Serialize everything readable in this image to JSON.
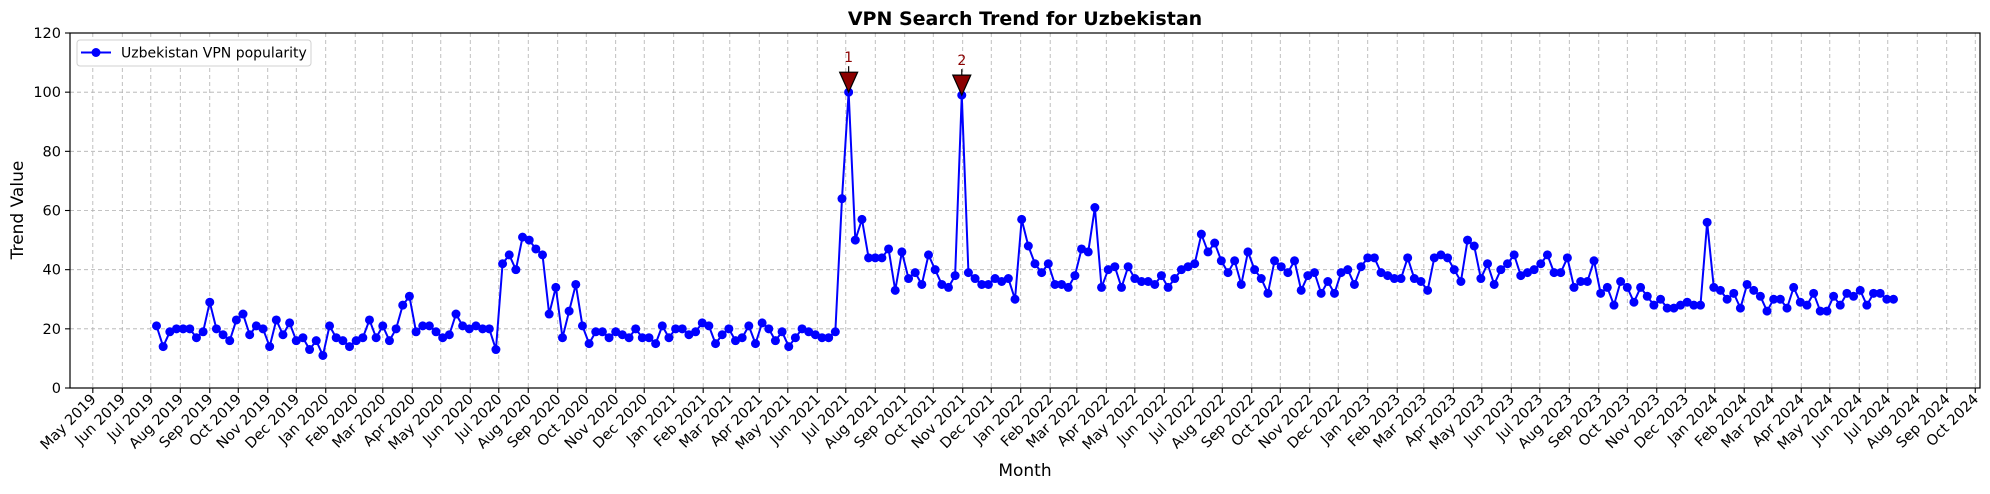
{
  "chart_data": {
    "type": "line",
    "title": "VPN Search Trend for Uzbekistan",
    "xlabel": "Month",
    "ylabel": "Trend Value",
    "ylim": [
      0,
      120
    ],
    "y_ticks": [
      0,
      20,
      40,
      60,
      80,
      100,
      120
    ],
    "xlim": [
      "2019-04-07",
      "2024-10-06"
    ],
    "x_tick_labels": [
      "May 2019",
      "Jun 2019",
      "Jul 2019",
      "Aug 2019",
      "Sep 2019",
      "Oct 2019",
      "Nov 2019",
      "Dec 2019",
      "Jan 2020",
      "Feb 2020",
      "Mar 2020",
      "Apr 2020",
      "May 2020",
      "Jun 2020",
      "Jul 2020",
      "Aug 2020",
      "Sep 2020",
      "Oct 2020",
      "Nov 2020",
      "Dec 2020",
      "Jan 2021",
      "Feb 2021",
      "Mar 2021",
      "Apr 2021",
      "May 2021",
      "Jun 2021",
      "Jul 2021",
      "Aug 2021",
      "Sep 2021",
      "Oct 2021",
      "Nov 2021",
      "Dec 2021",
      "Jan 2022",
      "Feb 2022",
      "Mar 2022",
      "Apr 2022",
      "May 2022",
      "Jun 2022",
      "Jul 2022",
      "Aug 2022",
      "Sep 2022",
      "Oct 2022",
      "Nov 2022",
      "Dec 2022",
      "Jan 2023",
      "Feb 2023",
      "Mar 2023",
      "Apr 2023",
      "May 2023",
      "Jun 2023",
      "Jul 2023",
      "Aug 2023",
      "Sep 2023",
      "Oct 2023",
      "Nov 2023",
      "Dec 2023",
      "Jan 2024",
      "Feb 2024",
      "Mar 2024",
      "Apr 2024",
      "May 2024",
      "Jun 2024",
      "Jul 2024",
      "Aug 2024",
      "Sep 2024",
      "Oct 2024"
    ],
    "grid": true,
    "legend_position": "top-left",
    "series": [
      {
        "name": "Uzbekistan VPN popularity",
        "color": "#0000ff",
        "marker": "circle",
        "x": [
          "2019-07-07",
          "2019-07-14",
          "2019-07-21",
          "2019-07-28",
          "2019-08-04",
          "2019-08-11",
          "2019-08-18",
          "2019-08-25",
          "2019-09-01",
          "2019-09-08",
          "2019-09-15",
          "2019-09-22",
          "2019-09-29",
          "2019-10-06",
          "2019-10-13",
          "2019-10-20",
          "2019-10-27",
          "2019-11-03",
          "2019-11-10",
          "2019-11-17",
          "2019-11-24",
          "2019-12-01",
          "2019-12-08",
          "2019-12-15",
          "2019-12-22",
          "2019-12-29",
          "2020-01-05",
          "2020-01-12",
          "2020-01-19",
          "2020-01-26",
          "2020-02-02",
          "2020-02-09",
          "2020-02-16",
          "2020-02-23",
          "2020-03-01",
          "2020-03-08",
          "2020-03-15",
          "2020-03-22",
          "2020-03-29",
          "2020-04-05",
          "2020-04-12",
          "2020-04-19",
          "2020-04-26",
          "2020-05-03",
          "2020-05-10",
          "2020-05-17",
          "2020-05-24",
          "2020-05-31",
          "2020-06-07",
          "2020-06-14",
          "2020-06-21",
          "2020-06-28",
          "2020-07-05",
          "2020-07-12",
          "2020-07-19",
          "2020-07-26",
          "2020-08-02",
          "2020-08-09",
          "2020-08-16",
          "2020-08-23",
          "2020-08-30",
          "2020-09-06",
          "2020-09-13",
          "2020-09-20",
          "2020-09-27",
          "2020-10-04",
          "2020-10-11",
          "2020-10-18",
          "2020-10-25",
          "2020-11-01",
          "2020-11-08",
          "2020-11-15",
          "2020-11-22",
          "2020-11-29",
          "2020-12-06",
          "2020-12-13",
          "2020-12-20",
          "2020-12-27",
          "2021-01-03",
          "2021-01-10",
          "2021-01-17",
          "2021-01-24",
          "2021-01-31",
          "2021-02-07",
          "2021-02-14",
          "2021-02-21",
          "2021-02-28",
          "2021-03-07",
          "2021-03-14",
          "2021-03-21",
          "2021-03-28",
          "2021-04-04",
          "2021-04-11",
          "2021-04-18",
          "2021-04-25",
          "2021-05-02",
          "2021-05-09",
          "2021-05-16",
          "2021-05-23",
          "2021-05-30",
          "2021-06-06",
          "2021-06-13",
          "2021-06-20",
          "2021-06-27",
          "2021-07-04",
          "2021-07-11",
          "2021-07-18",
          "2021-07-25",
          "2021-08-01",
          "2021-08-08",
          "2021-08-15",
          "2021-08-22",
          "2021-08-29",
          "2021-09-05",
          "2021-09-12",
          "2021-09-19",
          "2021-09-26",
          "2021-10-03",
          "2021-10-10",
          "2021-10-17",
          "2021-10-24",
          "2021-10-31",
          "2021-11-07",
          "2021-11-14",
          "2021-11-21",
          "2021-11-28",
          "2021-12-05",
          "2021-12-12",
          "2021-12-19",
          "2021-12-26",
          "2022-01-02",
          "2022-01-09",
          "2022-01-16",
          "2022-01-23",
          "2022-01-30",
          "2022-02-06",
          "2022-02-13",
          "2022-02-20",
          "2022-02-27",
          "2022-03-06",
          "2022-03-13",
          "2022-03-20",
          "2022-03-27",
          "2022-04-03",
          "2022-04-10",
          "2022-04-17",
          "2022-04-24",
          "2022-05-01",
          "2022-05-08",
          "2022-05-15",
          "2022-05-22",
          "2022-05-29",
          "2022-06-05",
          "2022-06-12",
          "2022-06-19",
          "2022-06-26",
          "2022-07-03",
          "2022-07-10",
          "2022-07-17",
          "2022-07-24",
          "2022-07-31",
          "2022-08-07",
          "2022-08-14",
          "2022-08-21",
          "2022-08-28",
          "2022-09-04",
          "2022-09-11",
          "2022-09-18",
          "2022-09-25",
          "2022-10-02",
          "2022-10-09",
          "2022-10-16",
          "2022-10-23",
          "2022-10-30",
          "2022-11-06",
          "2022-11-13",
          "2022-11-20",
          "2022-11-27",
          "2022-12-04",
          "2022-12-11",
          "2022-12-18",
          "2022-12-25",
          "2023-01-01",
          "2023-01-08",
          "2023-01-15",
          "2023-01-22",
          "2023-01-29",
          "2023-02-05",
          "2023-02-12",
          "2023-02-19",
          "2023-02-26",
          "2023-03-05",
          "2023-03-12",
          "2023-03-19",
          "2023-03-26",
          "2023-04-02",
          "2023-04-09",
          "2023-04-16",
          "2023-04-23",
          "2023-04-30",
          "2023-05-07",
          "2023-05-14",
          "2023-05-21",
          "2023-05-28",
          "2023-06-04",
          "2023-06-11",
          "2023-06-18",
          "2023-06-25",
          "2023-07-02",
          "2023-07-09",
          "2023-07-16",
          "2023-07-23",
          "2023-07-30",
          "2023-08-06",
          "2023-08-13",
          "2023-08-20",
          "2023-08-27",
          "2023-09-03",
          "2023-09-10",
          "2023-09-17",
          "2023-09-24",
          "2023-10-01",
          "2023-10-08",
          "2023-10-15",
          "2023-10-22",
          "2023-10-29",
          "2023-11-05",
          "2023-11-12",
          "2023-11-19",
          "2023-11-26",
          "2023-12-03",
          "2023-12-10",
          "2023-12-17",
          "2023-12-24",
          "2023-12-31",
          "2024-01-07",
          "2024-01-14",
          "2024-01-21",
          "2024-01-28",
          "2024-02-04",
          "2024-02-11",
          "2024-02-18",
          "2024-02-25",
          "2024-03-03",
          "2024-03-10",
          "2024-03-17",
          "2024-03-24",
          "2024-03-31",
          "2024-04-07",
          "2024-04-14",
          "2024-04-21",
          "2024-04-28",
          "2024-05-05",
          "2024-05-12",
          "2024-05-19",
          "2024-05-26",
          "2024-06-02",
          "2024-06-09",
          "2024-06-16",
          "2024-06-23",
          "2024-06-30",
          "2024-07-07"
        ],
        "values": [
          21,
          14,
          19,
          20,
          20,
          20,
          17,
          19,
          29,
          20,
          18,
          16,
          23,
          25,
          18,
          21,
          20,
          14,
          23,
          18,
          22,
          16,
          17,
          13,
          16,
          11,
          21,
          17,
          16,
          14,
          16,
          17,
          23,
          17,
          21,
          16,
          20,
          28,
          31,
          19,
          21,
          21,
          19,
          17,
          18,
          25,
          21,
          20,
          21,
          20,
          20,
          13,
          42,
          45,
          40,
          51,
          50,
          47,
          45,
          25,
          34,
          17,
          26,
          35,
          21,
          15,
          19,
          19,
          17,
          19,
          18,
          17,
          20,
          17,
          17,
          15,
          21,
          17,
          20,
          20,
          18,
          19,
          22,
          21,
          15,
          18,
          20,
          16,
          17,
          21,
          15,
          22,
          20,
          16,
          19,
          14,
          17,
          20,
          19,
          18,
          17,
          17,
          19,
          64,
          100,
          50,
          57,
          44,
          44,
          44,
          47,
          33,
          46,
          37,
          39,
          35,
          45,
          40,
          35,
          34,
          38,
          99,
          39,
          37,
          35,
          35,
          37,
          36,
          37,
          30,
          57,
          48,
          42,
          39,
          42,
          35,
          35,
          34,
          38,
          47,
          46,
          61,
          34,
          40,
          41,
          34,
          41,
          37,
          36,
          36,
          35,
          38,
          34,
          37,
          40,
          41,
          42,
          52,
          46,
          49,
          43,
          39,
          43,
          35,
          46,
          40,
          37,
          32,
          43,
          41,
          39,
          43,
          33,
          38,
          39,
          32,
          36,
          32,
          39,
          40,
          35,
          41,
          44,
          44,
          39,
          38,
          37,
          37,
          44,
          37,
          36,
          33,
          44,
          45,
          44,
          40,
          36,
          50,
          48,
          37,
          42,
          35,
          40,
          42,
          45,
          38,
          39,
          40,
          42,
          45,
          39,
          39,
          44,
          34,
          36,
          36,
          43,
          32,
          34,
          28,
          36,
          34,
          29,
          34,
          31,
          28,
          30,
          27,
          27,
          28,
          29,
          28,
          28,
          56,
          34,
          33,
          30,
          32,
          27,
          35,
          33,
          31,
          26,
          30,
          30,
          27,
          34,
          29,
          28,
          32,
          26,
          26,
          31,
          28,
          32,
          31,
          33,
          28,
          32,
          32,
          30,
          30
        ]
      }
    ],
    "annotations": [
      {
        "label": "1",
        "date": "2021-07-04",
        "value": 100,
        "marker": "triangle-down",
        "color": "#8b0000"
      },
      {
        "label": "2",
        "date": "2021-10-31",
        "value": 99,
        "marker": "triangle-down",
        "color": "#8b0000"
      }
    ]
  }
}
